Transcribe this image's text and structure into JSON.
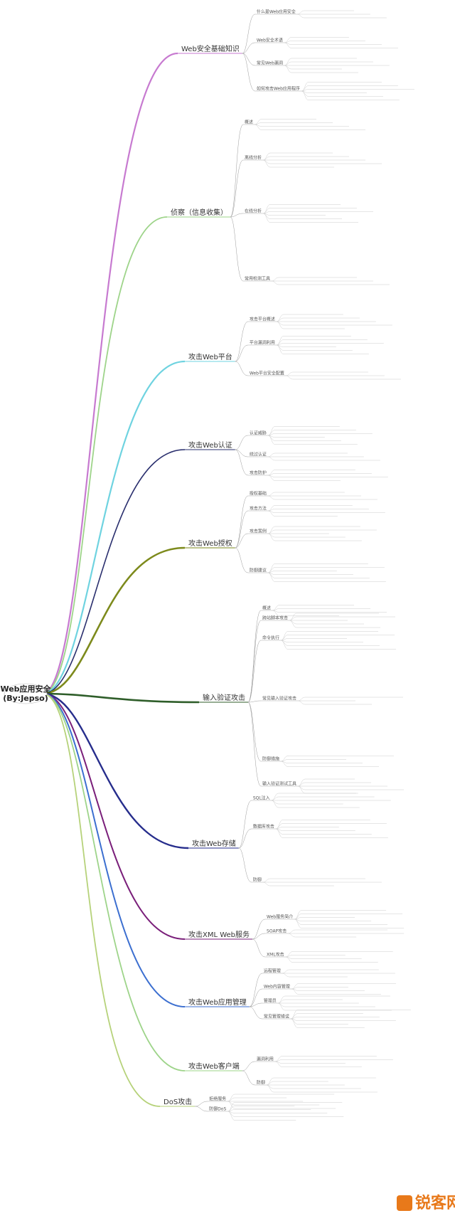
{
  "root": {
    "title": "Web应用安全",
    "author": "(By:Jepso)"
  },
  "branches": [
    {
      "label": "Web安全基础知识",
      "children": [
        "什么是Web应用安全",
        "Web安全术语",
        "常见Web漏洞",
        "如何攻击Web应用程序"
      ]
    },
    {
      "label": "侦察（信息收集）",
      "children": [
        "概述",
        "离线分析",
        "在线分析",
        "常用检测工具"
      ]
    },
    {
      "label": "攻击Web平台",
      "children": [
        "攻击平台概述",
        "平台漏洞利用",
        "Web平台安全配置"
      ]
    },
    {
      "label": "攻击Web认证",
      "children": [
        "认证威胁",
        "绕过认证",
        "攻击防护"
      ]
    },
    {
      "label": "攻击Web授权",
      "children": [
        "授权基础",
        "攻击方法",
        "攻击案例",
        "防御建议"
      ]
    },
    {
      "label": "输入验证攻击",
      "children": [
        "概述",
        "跨站脚本攻击",
        "命令执行",
        "常见输入验证攻击",
        "防御措施",
        "输入验证测试工具"
      ]
    },
    {
      "label": "攻击Web存储",
      "children": [
        "SQL注入",
        "数据库攻击",
        "防御"
      ]
    },
    {
      "label": "攻击XML Web服务",
      "children": [
        "Web服务简介",
        "SOAP攻击",
        "XML攻击"
      ]
    },
    {
      "label": "攻击Web应用管理",
      "children": [
        "远程管理",
        "Web内容管理",
        "管理员",
        "常见管理错误"
      ]
    },
    {
      "label": "攻击Web客户端",
      "children": [
        "漏洞利用",
        "防御"
      ]
    },
    {
      "label": "DoS攻击",
      "children": [
        "拒绝服务",
        "防御DoS"
      ]
    }
  ],
  "watermark": "锐客网"
}
